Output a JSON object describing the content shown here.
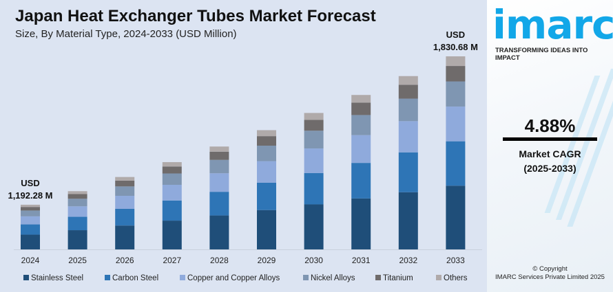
{
  "chart_data": {
    "type": "bar",
    "stacked": true,
    "title": "Japan Heat Exchanger Tubes Market Forecast",
    "subtitle": "Size, By Material Type, 2024-2033 (USD Million)",
    "categories": [
      "2024",
      "2025",
      "2026",
      "2027",
      "2028",
      "2029",
      "2030",
      "2031",
      "2032",
      "2033"
    ],
    "totals": [
      1192.28,
      1250.5,
      1311.5,
      1375.5,
      1442.6,
      1513.0,
      1587.0,
      1664.5,
      1745.7,
      1830.68
    ],
    "series": [
      {
        "name": "Stainless Steel",
        "color": "#1f4e79",
        "share": 0.33
      },
      {
        "name": "Carbon Steel",
        "color": "#2e75b6",
        "share": 0.23
      },
      {
        "name": "Copper and Copper Alloys",
        "color": "#8faadc",
        "share": 0.18
      },
      {
        "name": "Nickel Alloys",
        "color": "#7f96b2",
        "share": 0.13
      },
      {
        "name": "Titanium",
        "color": "#6f6b6b",
        "share": 0.08
      },
      {
        "name": "Others",
        "color": "#b0aaaa",
        "share": 0.05
      }
    ],
    "annotations": [
      {
        "category": "2024",
        "line1": "USD",
        "line2": "1,192.28 M"
      },
      {
        "category": "2033",
        "line1": "USD",
        "line2": "1,830.68 M"
      }
    ],
    "legend_position": "bottom",
    "grid": false,
    "ylim": [
      1000,
      1900
    ]
  },
  "brand": {
    "logo": "imarc",
    "tagline": "TRANSFORMING IDEAS INTO IMPACT"
  },
  "cagr": {
    "value": "4.88%",
    "label": "Market CAGR",
    "period": "(2025-2033)"
  },
  "copyright": {
    "line1": "© Copyright",
    "line2": "IMARC Services Private Limited 2025"
  }
}
